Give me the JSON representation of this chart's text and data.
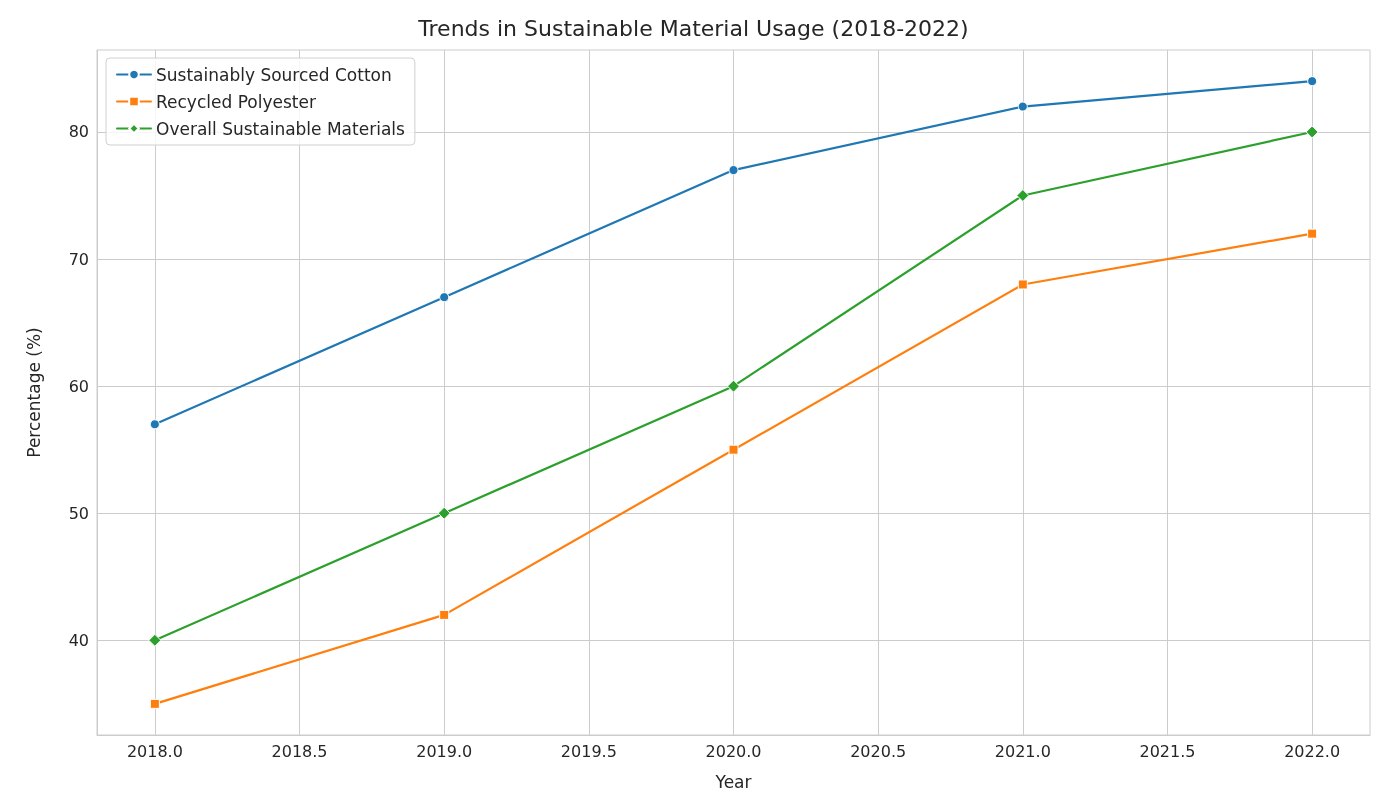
{
  "chart_data": {
    "type": "line",
    "title": "Trends in Sustainable Material Usage (2018-2022)",
    "xlabel": "Year",
    "ylabel": "Percentage (%)",
    "x": [
      2018,
      2019,
      2020,
      2021,
      2022
    ],
    "series": [
      {
        "name": "Sustainably Sourced Cotton",
        "color": "#1f77b4",
        "marker": "circle",
        "values": [
          57,
          67,
          77,
          82,
          84
        ]
      },
      {
        "name": "Recycled Polyester",
        "color": "#ff7f0e",
        "marker": "square",
        "values": [
          35,
          42,
          55,
          68,
          72
        ]
      },
      {
        "name": "Overall Sustainable Materials",
        "color": "#2ca02c",
        "marker": "diamond",
        "values": [
          40,
          50,
          60,
          75,
          80
        ]
      }
    ],
    "xlim": [
      2017.8,
      2022.2
    ],
    "xticks": [
      {
        "value": 2018,
        "label": "2018.0"
      },
      {
        "value": 2018.5,
        "label": "2018.5"
      },
      {
        "value": 2019,
        "label": "2019.0"
      },
      {
        "value": 2019.5,
        "label": "2019.5"
      },
      {
        "value": 2020,
        "label": "2020.0"
      },
      {
        "value": 2020.5,
        "label": "2020.5"
      },
      {
        "value": 2021,
        "label": "2021.0"
      },
      {
        "value": 2021.5,
        "label": "2021.5"
      },
      {
        "value": 2022,
        "label": "2022.0"
      }
    ],
    "ylim": [
      32.55,
      86.45
    ],
    "yticks": [
      40,
      50,
      60,
      70,
      80
    ],
    "grid": true,
    "legend": "top left",
    "line_style": "solid"
  }
}
